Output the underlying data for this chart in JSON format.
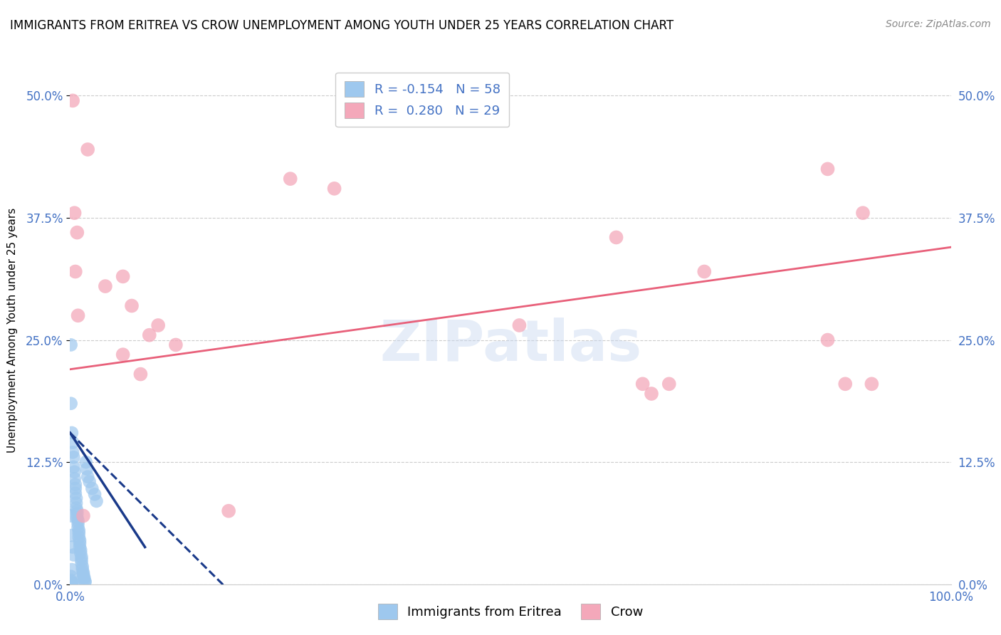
{
  "title": "IMMIGRANTS FROM ERITREA VS CROW UNEMPLOYMENT AMONG YOUTH UNDER 25 YEARS CORRELATION CHART",
  "source": "Source: ZipAtlas.com",
  "ylabel": "Unemployment Among Youth under 25 years",
  "xlim": [
    0.0,
    1.0
  ],
  "ylim": [
    0.0,
    0.52
  ],
  "yticks": [
    0.0,
    0.125,
    0.25,
    0.375,
    0.5
  ],
  "ytick_labels": [
    "0.0%",
    "12.5%",
    "25.0%",
    "37.5%",
    "50.0%"
  ],
  "xticks": [
    0.0,
    0.25,
    0.5,
    0.75,
    1.0
  ],
  "xtick_labels": [
    "0.0%",
    "",
    "",
    "",
    "100.0%"
  ],
  "watermark": "ZIPatlas",
  "blue_color": "#9EC8EE",
  "pink_color": "#F4A8BA",
  "blue_line_color": "#1A3A8A",
  "pink_line_color": "#E8607A",
  "blue_scatter": [
    [
      0.001,
      0.245
    ],
    [
      0.002,
      0.155
    ],
    [
      0.003,
      0.145
    ],
    [
      0.003,
      0.135
    ],
    [
      0.004,
      0.13
    ],
    [
      0.004,
      0.12
    ],
    [
      0.005,
      0.115
    ],
    [
      0.005,
      0.108
    ],
    [
      0.006,
      0.102
    ],
    [
      0.006,
      0.098
    ],
    [
      0.006,
      0.093
    ],
    [
      0.007,
      0.088
    ],
    [
      0.007,
      0.083
    ],
    [
      0.007,
      0.078
    ],
    [
      0.008,
      0.075
    ],
    [
      0.008,
      0.072
    ],
    [
      0.008,
      0.068
    ],
    [
      0.009,
      0.065
    ],
    [
      0.009,
      0.062
    ],
    [
      0.009,
      0.058
    ],
    [
      0.01,
      0.055
    ],
    [
      0.01,
      0.052
    ],
    [
      0.01,
      0.048
    ],
    [
      0.011,
      0.045
    ],
    [
      0.011,
      0.042
    ],
    [
      0.011,
      0.038
    ],
    [
      0.012,
      0.035
    ],
    [
      0.012,
      0.032
    ],
    [
      0.013,
      0.028
    ],
    [
      0.013,
      0.025
    ],
    [
      0.013,
      0.022
    ],
    [
      0.014,
      0.018
    ],
    [
      0.014,
      0.015
    ],
    [
      0.015,
      0.012
    ],
    [
      0.015,
      0.01
    ],
    [
      0.015,
      0.008
    ],
    [
      0.016,
      0.007
    ],
    [
      0.016,
      0.005
    ],
    [
      0.017,
      0.003
    ],
    [
      0.017,
      0.002
    ],
    [
      0.001,
      0.07
    ],
    [
      0.002,
      0.05
    ],
    [
      0.003,
      0.038
    ],
    [
      0.004,
      0.03
    ],
    [
      0.002,
      0.015
    ],
    [
      0.001,
      0.008
    ],
    [
      0.001,
      0.004
    ],
    [
      0.002,
      0.002
    ],
    [
      0.003,
      0.001
    ],
    [
      0.001,
      0.0
    ],
    [
      0.002,
      0.0
    ],
    [
      0.018,
      0.125
    ],
    [
      0.019,
      0.118
    ],
    [
      0.02,
      0.11
    ],
    [
      0.022,
      0.105
    ],
    [
      0.025,
      0.098
    ],
    [
      0.028,
      0.092
    ],
    [
      0.03,
      0.085
    ],
    [
      0.001,
      0.185
    ]
  ],
  "pink_scatter": [
    [
      0.003,
      0.495
    ],
    [
      0.02,
      0.445
    ],
    [
      0.005,
      0.38
    ],
    [
      0.008,
      0.36
    ],
    [
      0.06,
      0.315
    ],
    [
      0.04,
      0.305
    ],
    [
      0.07,
      0.285
    ],
    [
      0.1,
      0.265
    ],
    [
      0.09,
      0.255
    ],
    [
      0.12,
      0.245
    ],
    [
      0.06,
      0.235
    ],
    [
      0.08,
      0.215
    ],
    [
      0.006,
      0.32
    ],
    [
      0.009,
      0.275
    ],
    [
      0.3,
      0.405
    ],
    [
      0.25,
      0.415
    ],
    [
      0.62,
      0.355
    ],
    [
      0.72,
      0.32
    ],
    [
      0.86,
      0.425
    ],
    [
      0.9,
      0.38
    ],
    [
      0.86,
      0.25
    ],
    [
      0.88,
      0.205
    ],
    [
      0.91,
      0.205
    ],
    [
      0.66,
      0.195
    ],
    [
      0.51,
      0.265
    ],
    [
      0.65,
      0.205
    ],
    [
      0.68,
      0.205
    ],
    [
      0.18,
      0.075
    ],
    [
      0.015,
      0.07
    ]
  ],
  "blue_trend_x": [
    0.0,
    0.085
  ],
  "blue_trend_y": [
    0.155,
    0.038
  ],
  "pink_trend_x": [
    0.0,
    1.0
  ],
  "pink_trend_y": [
    0.22,
    0.345
  ]
}
